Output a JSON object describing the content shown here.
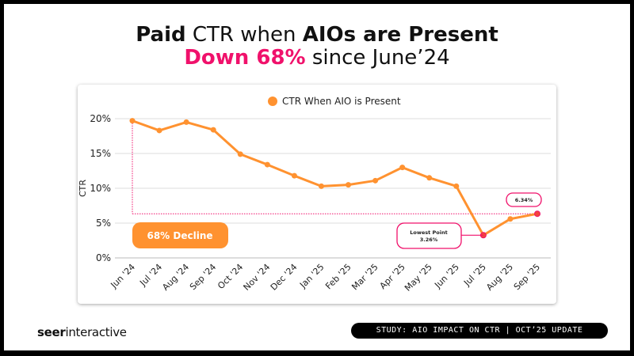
{
  "title": {
    "line1_bold_a": "Paid",
    "line1_light": " CTR when ",
    "line1_bold_b": "AIOs are Present",
    "line2_pink": "Down 68%",
    "line2_rest": " since June’24"
  },
  "footer": {
    "logo_bold": "seer",
    "logo_rest": "interactive",
    "study": "STUDY: AIO IMPACT ON CTR | OCT’25 UPDATE"
  },
  "colors": {
    "series": "#ff9230",
    "annotation": "#f0116b"
  },
  "chart_data": {
    "type": "line",
    "ylabel": "CTR",
    "ylim": [
      0,
      20
    ],
    "yticks": [
      "0%",
      "5%",
      "10%",
      "15%",
      "20%"
    ],
    "grid": true,
    "legend_placement": "top",
    "categories": [
      "Jun '24",
      "Jul '24",
      "Aug '24",
      "Sep '24",
      "Oct '24",
      "Nov '24",
      "Dec '24",
      "Jan '25",
      "Feb '25",
      "Mar '25",
      "Apr '25",
      "May '25",
      "Jun '25",
      "Jul '25",
      "Aug '25",
      "Sep '25"
    ],
    "series": [
      {
        "name": "CTR When AIO is Present",
        "values": [
          19.7,
          18.3,
          19.5,
          18.4,
          14.9,
          13.4,
          11.8,
          10.3,
          10.5,
          11.1,
          13.0,
          11.5,
          10.3,
          3.26,
          5.6,
          6.34
        ]
      }
    ],
    "annotations": {
      "decline": "68% Decline",
      "lowest_title": "Lowest Point",
      "lowest_value": "3.26%",
      "last_value": "6.34%"
    }
  }
}
